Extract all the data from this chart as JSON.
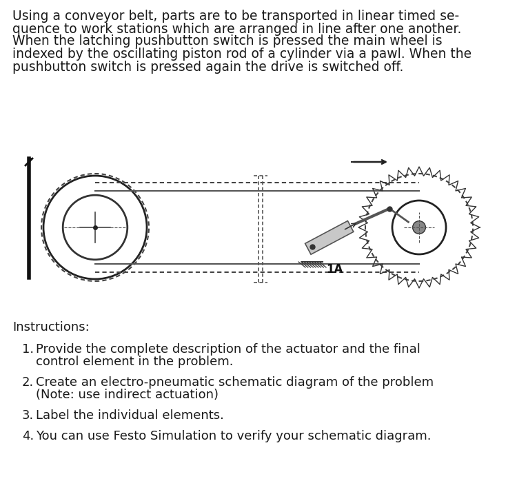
{
  "bg_color": "#ffffff",
  "text_color": "#1a1a1a",
  "para1_line1": "Using a conveyor belt, parts are to be transported in linear timed se-",
  "para1_line2": "quence to work stations which are arranged in line after one another.",
  "para2_line1": "When the latching pushbutton switch is pressed the main wheel is",
  "para2_line2": "indexed by the oscillating piston rod of a cylinder via a pawl. When the",
  "para2_line3": "pushbutton switch is pressed again the drive is switched off.",
  "label_1A": "1A",
  "instructions_header": "Instructions:",
  "instr1_line1": "Provide the complete description of the actuator and the final",
  "instr1_line2": "control element in the problem.",
  "instr2_line1": "Create an electro-pneumatic schematic diagram of the problem",
  "instr2_line2": "(Note: use indirect actuation)",
  "instr3": "Label the individual elements.",
  "instr4": "You can use Festo Simulation to verify your schematic diagram.",
  "font_size_body": 13.5,
  "font_size_instructions": 13.0
}
